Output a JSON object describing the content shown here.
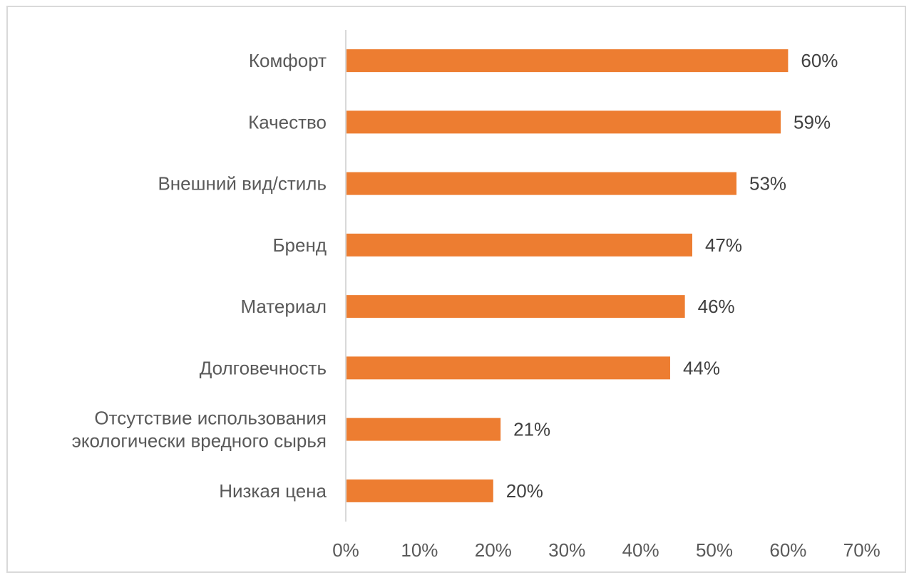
{
  "chart_data": {
    "type": "bar",
    "orientation": "horizontal",
    "categories": [
      [
        "Комфорт"
      ],
      [
        "Качество"
      ],
      [
        "Внешний вид/стиль"
      ],
      [
        "Бренд"
      ],
      [
        "Материал"
      ],
      [
        "Долговечность"
      ],
      [
        "Отсутствие использования",
        "экологически вредного сырья"
      ],
      [
        "Низкая цена"
      ]
    ],
    "values": [
      60,
      59,
      53,
      47,
      46,
      44,
      21,
      20
    ],
    "data_labels": [
      "60%",
      "59%",
      "53%",
      "47%",
      "46%",
      "44%",
      "21%",
      "20%"
    ],
    "x_ticks": [
      "0%",
      "10%",
      "20%",
      "30%",
      "40%",
      "50%",
      "60%",
      "70%"
    ],
    "xlim": [
      0,
      70
    ],
    "grid": false,
    "legend": "none",
    "bar_color": "#ed7d31",
    "axis_color": "#d9d9d9"
  }
}
